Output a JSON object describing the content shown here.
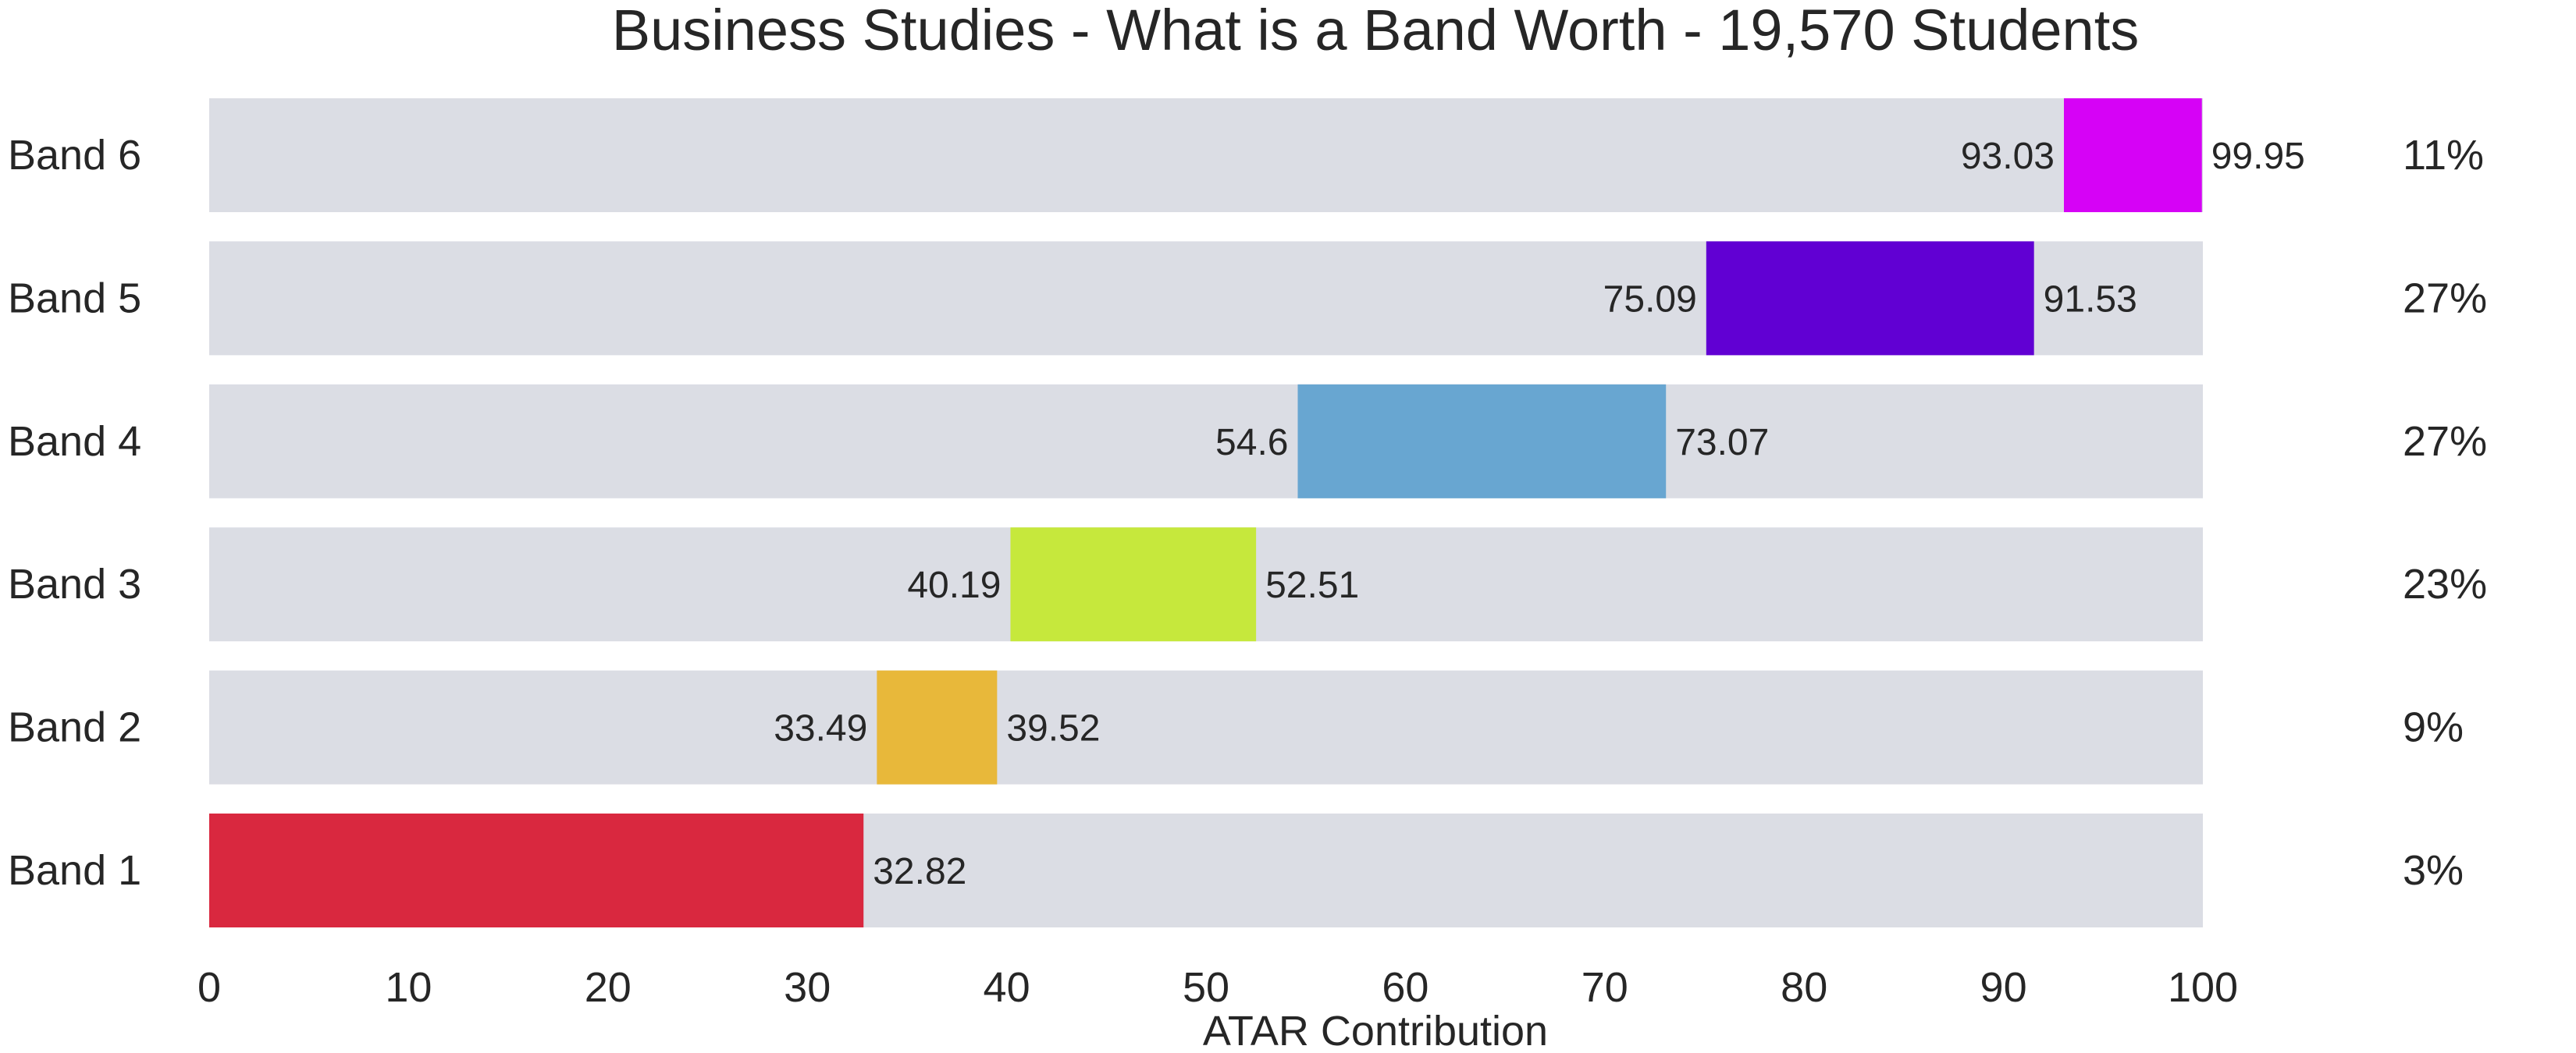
{
  "chart_data": {
    "type": "bar",
    "orientation": "horizontal-range",
    "title": "Business Studies - What is a Band Worth - 19,570 Students",
    "xlabel": "ATAR Contribution",
    "ylabel": "",
    "xlim": [
      0,
      100
    ],
    "xticks": [
      "0",
      "10",
      "20",
      "30",
      "40",
      "50",
      "60",
      "70",
      "80",
      "90",
      "100"
    ],
    "grid": false,
    "bands": [
      {
        "label": "Band 6",
        "low": 93.03,
        "high": 99.95,
        "low_label": "93.03",
        "high_label": "99.95",
        "percent": "11%",
        "color": "#d602f6"
      },
      {
        "label": "Band 5",
        "low": 75.09,
        "high": 91.53,
        "low_label": "75.09",
        "high_label": "91.53",
        "percent": "27%",
        "color": "#6100d3"
      },
      {
        "label": "Band 4",
        "low": 54.6,
        "high": 73.07,
        "low_label": "54.6",
        "high_label": "73.07",
        "percent": "27%",
        "color": "#68a6d1"
      },
      {
        "label": "Band 3",
        "low": 40.19,
        "high": 52.51,
        "low_label": "40.19",
        "high_label": "52.51",
        "percent": "23%",
        "color": "#c6e83c"
      },
      {
        "label": "Band 2",
        "low": 33.49,
        "high": 39.52,
        "low_label": "33.49",
        "high_label": "39.52",
        "percent": "9%",
        "color": "#e8b83a"
      },
      {
        "label": "Band 1",
        "low": 0,
        "high": 32.82,
        "low_label": "",
        "high_label": "32.82",
        "percent": "3%",
        "color": "#d9283f"
      }
    ],
    "track_color": "#dbdde4"
  }
}
